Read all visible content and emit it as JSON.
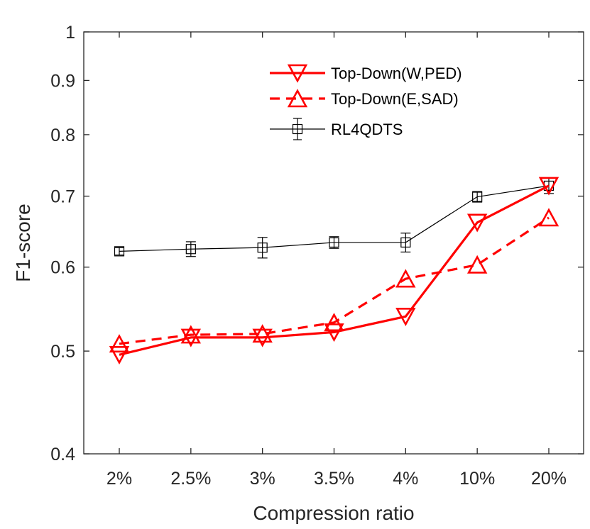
{
  "chart_data": {
    "type": "line",
    "title": "",
    "xlabel": "Compression ratio",
    "ylabel": "F1-score",
    "yscale": "log",
    "ylim": [
      0.4,
      1
    ],
    "yticks": [
      0.4,
      0.5,
      0.6,
      0.7,
      0.8,
      0.9,
      1
    ],
    "ytick_labels": [
      "0.4",
      "0.5",
      "0.6",
      "0.7",
      "0.8",
      "0.9",
      "1"
    ],
    "categories": [
      "2%",
      "2.5%",
      "3%",
      "3.5%",
      "4%",
      "10%",
      "20%"
    ],
    "grid": false,
    "legend_position": "top-right",
    "series": [
      {
        "name": "Top-Down(W,PED)",
        "color": "#ff0000",
        "line_style": "solid",
        "marker": "triangle-down",
        "values": [
          0.496,
          0.515,
          0.515,
          0.521,
          0.539,
          0.661,
          0.716
        ]
      },
      {
        "name": "Top-Down(E,SAD)",
        "color": "#ff0000",
        "line_style": "dashed",
        "marker": "triangle-up",
        "values": [
          0.508,
          0.518,
          0.519,
          0.532,
          0.585,
          0.603,
          0.668
        ]
      },
      {
        "name": "RL4QDTS",
        "color": "#000000",
        "line_style": "solid",
        "marker": "square",
        "values": [
          0.621,
          0.624,
          0.626,
          0.633,
          0.633,
          0.699,
          0.716
        ],
        "error": [
          0.005,
          0.01,
          0.014,
          0.008,
          0.013,
          0.008,
          0.012
        ]
      }
    ]
  }
}
